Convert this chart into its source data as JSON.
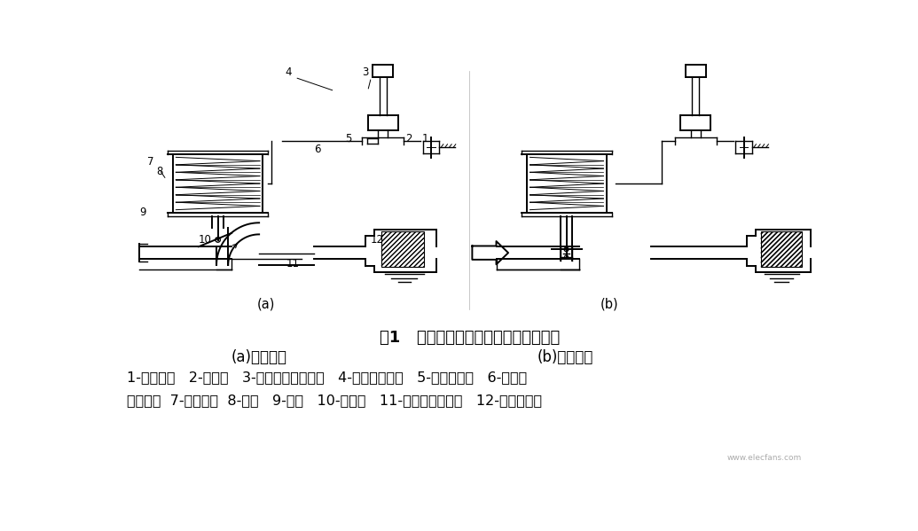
{
  "title": "图1   进气恒温控制系统结构及工作原理",
  "subtitle_a": "(a)进热空气",
  "subtitle_b": "(b)进冷空气",
  "caption_line1": "1-真空软管   2-单向阀   3-温控开关感温元件   4-温控开关阀门   5-反向延迟阀   6-真空驱",
  "caption_line2": "动器外壳  7-膜片弹簧  8-膜片   9-拉杆   10-控制阀   11-热空气金属软管   12-空气滤清器",
  "label_a": "(a)",
  "label_b": "(b)",
  "bg_color": "#ffffff",
  "text_color": "#000000",
  "title_fontsize": 13,
  "caption_fontsize": 11.5,
  "subtitle_fontsize": 12,
  "watermark": "www.elecfans.com"
}
